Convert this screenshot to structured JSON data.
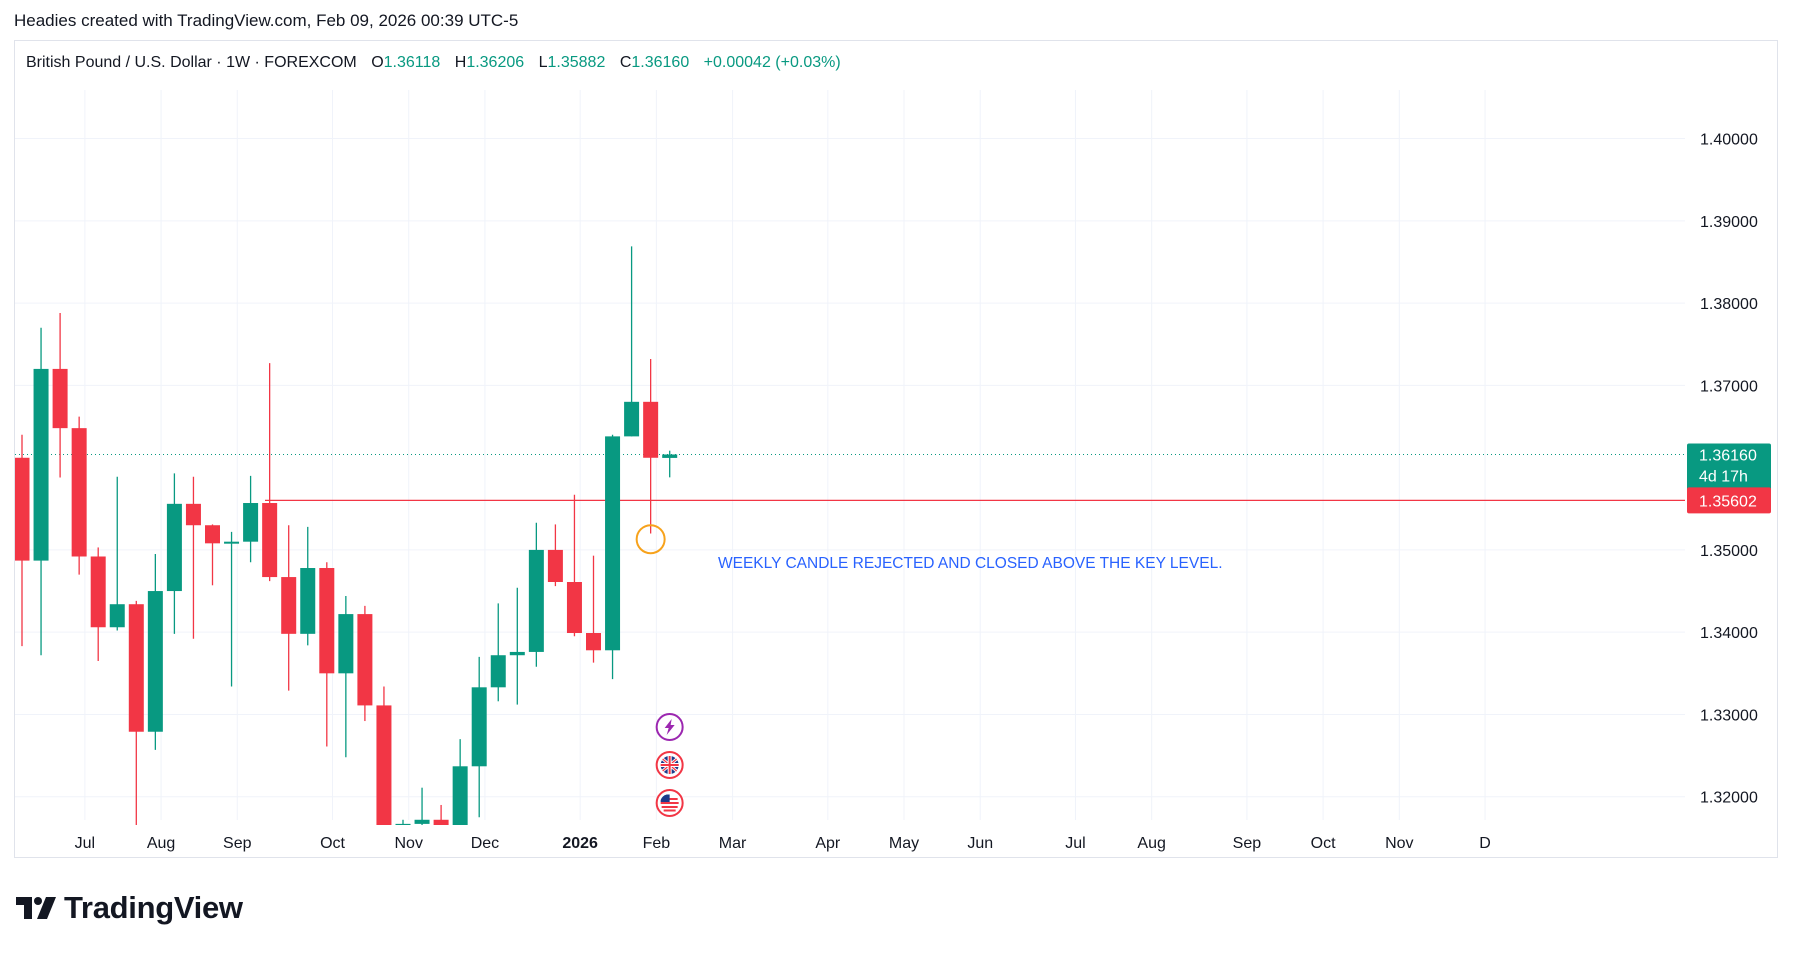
{
  "header": {
    "attribution": "Headies created with TradingView.com, Feb 09, 2026 00:39 UTC-5"
  },
  "legend": {
    "symbol": "British Pound / U.S. Dollar · 1W · FOREXCOM",
    "open_label": "O",
    "open": "1.36118",
    "high_label": "H",
    "high": "1.36206",
    "low_label": "L",
    "low": "1.35882",
    "close_label": "C",
    "close": "1.36160",
    "change": "+0.00042 (+0.03%)"
  },
  "price_badges": {
    "last_price": "1.36160",
    "countdown": "4d 17h",
    "key_level": "1.35602"
  },
  "annotation": {
    "text": "WEEKLY CANDLE REJECTED AND CLOSED ABOVE THE KEY LEVEL."
  },
  "event_icons": [
    "lightning-icon",
    "uk-flag-icon",
    "us-flag-icon"
  ],
  "brand": {
    "name": "TradingView"
  },
  "colors": {
    "up": "#089981",
    "down": "#f23645",
    "key_level": "#f23645",
    "annotation": "#2962ff",
    "marker": "#f7a21b"
  },
  "chart_data": {
    "type": "candlestick",
    "title": "British Pound / U.S. Dollar · 1W · FOREXCOM",
    "y_axis_side": "right",
    "ylim": [
      1.3162,
      1.4059
    ],
    "y_ticks": [
      "1.40000",
      "1.39000",
      "1.38000",
      "1.37000",
      "1.35000",
      "1.34000",
      "1.33000",
      "1.32000"
    ],
    "x_ticks": [
      {
        "label": "Jul",
        "bar": 3.3
      },
      {
        "label": "Aug",
        "bar": 7.3
      },
      {
        "label": "Sep",
        "bar": 11.3
      },
      {
        "label": "Oct",
        "bar": 16.3
      },
      {
        "label": "Nov",
        "bar": 20.3
      },
      {
        "label": "Dec",
        "bar": 24.3
      },
      {
        "label": "2026",
        "bar": 29.3
      },
      {
        "label": "Feb",
        "bar": 33.3
      },
      {
        "label": "Mar",
        "bar": 37.3
      },
      {
        "label": "Apr",
        "bar": 42.3
      },
      {
        "label": "May",
        "bar": 46.3
      },
      {
        "label": "Jun",
        "bar": 50.3
      },
      {
        "label": "Jul",
        "bar": 55.3
      },
      {
        "label": "Aug",
        "bar": 59.3
      },
      {
        "label": "Sep",
        "bar": 64.3
      },
      {
        "label": "Oct",
        "bar": 68.3
      },
      {
        "label": "Nov",
        "bar": 72.3
      },
      {
        "label": "D",
        "bar": 76.8
      }
    ],
    "candles": [
      {
        "o": 1.3612,
        "h": 1.364,
        "l": 1.3383,
        "c": 1.3487
      },
      {
        "o": 1.3487,
        "h": 1.377,
        "l": 1.3372,
        "c": 1.372
      },
      {
        "o": 1.372,
        "h": 1.3788,
        "l": 1.3588,
        "c": 1.3648
      },
      {
        "o": 1.3648,
        "h": 1.3662,
        "l": 1.347,
        "c": 1.3492
      },
      {
        "o": 1.3492,
        "h": 1.3503,
        "l": 1.3365,
        "c": 1.3406
      },
      {
        "o": 1.3406,
        "h": 1.3589,
        "l": 1.3402,
        "c": 1.3434
      },
      {
        "o": 1.3434,
        "h": 1.3438,
        "l": 1.3141,
        "c": 1.3279
      },
      {
        "o": 1.3279,
        "h": 1.3495,
        "l": 1.3257,
        "c": 1.345
      },
      {
        "o": 1.345,
        "h": 1.3593,
        "l": 1.3398,
        "c": 1.3556
      },
      {
        "o": 1.3556,
        "h": 1.3589,
        "l": 1.3392,
        "c": 1.353
      },
      {
        "o": 1.353,
        "h": 1.3531,
        "l": 1.3457,
        "c": 1.3508
      },
      {
        "o": 1.3508,
        "h": 1.3522,
        "l": 1.3334,
        "c": 1.351
      },
      {
        "o": 1.351,
        "h": 1.359,
        "l": 1.3485,
        "c": 1.3557
      },
      {
        "o": 1.3557,
        "h": 1.3727,
        "l": 1.3462,
        "c": 1.3467
      },
      {
        "o": 1.3467,
        "h": 1.353,
        "l": 1.3329,
        "c": 1.3398
      },
      {
        "o": 1.3398,
        "h": 1.3528,
        "l": 1.3384,
        "c": 1.3478
      },
      {
        "o": 1.3478,
        "h": 1.3485,
        "l": 1.3261,
        "c": 1.335
      },
      {
        "o": 1.335,
        "h": 1.3444,
        "l": 1.3248,
        "c": 1.3422
      },
      {
        "o": 1.3422,
        "h": 1.3432,
        "l": 1.3292,
        "c": 1.3311
      },
      {
        "o": 1.3311,
        "h": 1.3334,
        "l": 1.3142,
        "c": 1.3152
      },
      {
        "o": 1.3152,
        "h": 1.3172,
        "l": 1.3098,
        "c": 1.3167
      },
      {
        "o": 1.3167,
        "h": 1.3211,
        "l": 1.315,
        "c": 1.3172
      },
      {
        "o": 1.3172,
        "h": 1.319,
        "l": 1.3131,
        "c": 1.3161
      },
      {
        "o": 1.3161,
        "h": 1.327,
        "l": 1.3155,
        "c": 1.3237
      },
      {
        "o": 1.3237,
        "h": 1.337,
        "l": 1.3175,
        "c": 1.3333
      },
      {
        "o": 1.3333,
        "h": 1.3435,
        "l": 1.3316,
        "c": 1.3372
      },
      {
        "o": 1.3372,
        "h": 1.3454,
        "l": 1.3312,
        "c": 1.3376
      },
      {
        "o": 1.3376,
        "h": 1.3533,
        "l": 1.3358,
        "c": 1.35
      },
      {
        "o": 1.35,
        "h": 1.3531,
        "l": 1.3456,
        "c": 1.3461
      },
      {
        "o": 1.3461,
        "h": 1.3567,
        "l": 1.3395,
        "c": 1.3399
      },
      {
        "o": 1.3399,
        "h": 1.3493,
        "l": 1.3363,
        "c": 1.3378
      },
      {
        "o": 1.3378,
        "h": 1.364,
        "l": 1.3343,
        "c": 1.3638
      },
      {
        "o": 1.3638,
        "h": 1.3869,
        "l": 1.3638,
        "c": 1.368
      },
      {
        "o": 1.368,
        "h": 1.3732,
        "l": 1.352,
        "c": 1.3612
      },
      {
        "o": 1.36118,
        "h": 1.36206,
        "l": 1.35882,
        "c": 1.3616
      }
    ],
    "last_price": 1.3616,
    "key_level": 1.35602
  }
}
